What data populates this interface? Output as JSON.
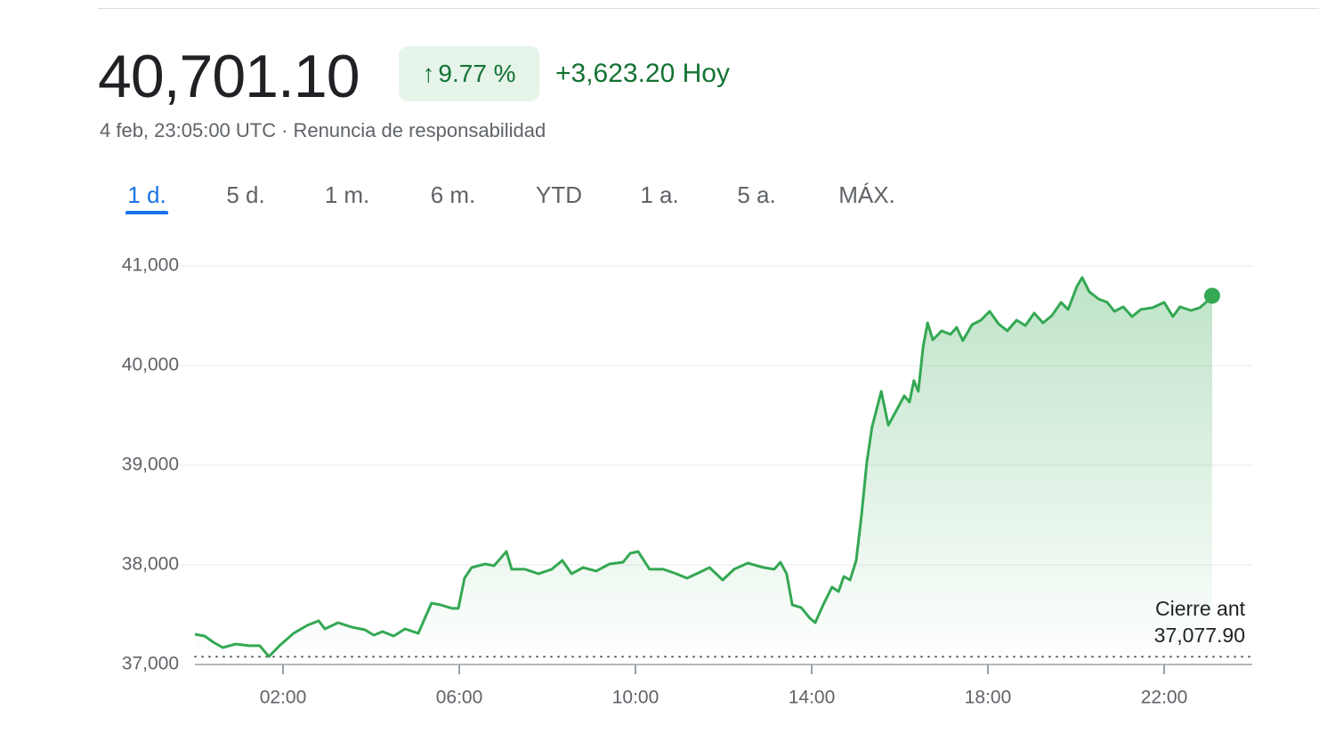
{
  "quote": {
    "price": "40,701.10",
    "arrow": "↑",
    "change_percent": "9.77 %",
    "change_abs": "+3,623.20 Hoy",
    "timestamp": "4 feb, 23:05:00 UTC",
    "separator": "·",
    "disclaimer": "Renuncia de responsabilidad"
  },
  "tabs": [
    "1 d.",
    "5 d.",
    "1 m.",
    "6 m.",
    "YTD",
    "1 a.",
    "5 a.",
    "MÁX."
  ],
  "selected_tab": 0,
  "chart_data": {
    "type": "line",
    "color": "#34a853",
    "x": [
      0.0,
      0.22,
      0.42,
      0.63,
      0.93,
      1.23,
      1.47,
      1.68,
      1.94,
      2.24,
      2.55,
      2.81,
      2.95,
      3.25,
      3.56,
      3.86,
      4.06,
      4.26,
      4.51,
      4.77,
      5.07,
      5.37,
      5.58,
      5.84,
      5.98,
      6.12,
      6.28,
      6.59,
      6.79,
      7.07,
      7.19,
      7.49,
      7.8,
      8.1,
      8.34,
      8.55,
      8.81,
      9.11,
      9.41,
      9.72,
      9.88,
      10.06,
      10.32,
      10.63,
      10.93,
      11.17,
      11.43,
      11.68,
      11.98,
      12.24,
      12.55,
      12.91,
      13.15,
      13.29,
      13.43,
      13.56,
      13.76,
      13.96,
      14.08,
      14.26,
      14.46,
      14.61,
      14.73,
      14.87,
      15.01,
      15.13,
      15.25,
      15.37,
      15.58,
      15.74,
      15.94,
      16.1,
      16.22,
      16.32,
      16.42,
      16.53,
      16.63,
      16.75,
      16.95,
      17.15,
      17.29,
      17.43,
      17.64,
      17.84,
      18.04,
      18.24,
      18.44,
      18.65,
      18.85,
      19.05,
      19.25,
      19.45,
      19.66,
      19.82,
      20.02,
      20.14,
      20.3,
      20.51,
      20.71,
      20.87,
      21.07,
      21.27,
      21.47,
      21.74,
      22.0,
      22.2,
      22.36,
      22.61,
      22.81,
      22.95,
      23.09
    ],
    "values": [
      37304,
      37286,
      37223,
      37170,
      37205,
      37188,
      37188,
      37080,
      37196,
      37313,
      37393,
      37438,
      37357,
      37420,
      37375,
      37348,
      37295,
      37330,
      37286,
      37357,
      37313,
      37616,
      37598,
      37563,
      37563,
      37866,
      37973,
      38009,
      37991,
      38134,
      37956,
      37956,
      37911,
      37956,
      38045,
      37911,
      37973,
      37938,
      38009,
      38027,
      38116,
      38134,
      37956,
      37956,
      37911,
      37866,
      37920,
      37973,
      37848,
      37956,
      38018,
      37973,
      37956,
      38027,
      37911,
      37598,
      37572,
      37464,
      37420,
      37598,
      37777,
      37732,
      37884,
      37848,
      38045,
      38491,
      39027,
      39384,
      39742,
      39402,
      39563,
      39697,
      39634,
      39849,
      39742,
      40188,
      40429,
      40259,
      40349,
      40313,
      40384,
      40251,
      40411,
      40456,
      40545,
      40420,
      40349,
      40456,
      40402,
      40527,
      40429,
      40501,
      40635,
      40563,
      40795,
      40885,
      40742,
      40670,
      40635,
      40545,
      40590,
      40492,
      40563,
      40581,
      40635,
      40492,
      40590,
      40554,
      40581,
      40635,
      40701.1
    ],
    "xlim": [
      0,
      24
    ],
    "xticks": [
      {
        "value": 2,
        "label": "02:00"
      },
      {
        "value": 6,
        "label": "06:00"
      },
      {
        "value": 10,
        "label": "10:00"
      },
      {
        "value": 14,
        "label": "14:00"
      },
      {
        "value": 18,
        "label": "18:00"
      },
      {
        "value": 22,
        "label": "22:00"
      }
    ],
    "ylim": [
      37000,
      41000
    ],
    "yticks": [
      {
        "value": 37000,
        "label": "37,000"
      },
      {
        "value": 38000,
        "label": "38,000"
      },
      {
        "value": 39000,
        "label": "39,000"
      },
      {
        "value": 40000,
        "label": "40,000"
      },
      {
        "value": 41000,
        "label": "41,000"
      }
    ],
    "grid": true,
    "previous_close": {
      "label": "Cierre ant",
      "value": 37077.9,
      "value_label": "37,077.90"
    }
  }
}
